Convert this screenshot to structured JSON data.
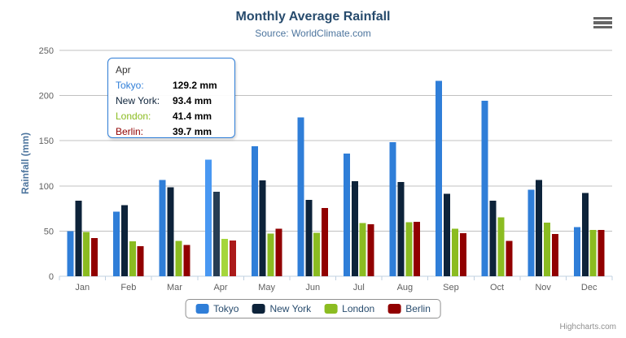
{
  "chart": {
    "title": "Monthly Average Rainfall",
    "subtitle": "Source: WorldClimate.com",
    "y_axis_title": "Rainfall (mm)",
    "credits": "Highcharts.com",
    "menu_icon": "hamburger-menu-icon"
  },
  "chart_data": {
    "type": "bar",
    "title": "Monthly Average Rainfall",
    "subtitle": "Source: WorldClimate.com",
    "xlabel": "",
    "ylabel": "Rainfall (mm)",
    "ylim": [
      0,
      250
    ],
    "y_tick_interval": 50,
    "y_tick_labels": [
      "0",
      "50",
      "100",
      "150",
      "200",
      "250"
    ],
    "grid": true,
    "legend_position": "bottom-center",
    "categories": [
      "Jan",
      "Feb",
      "Mar",
      "Apr",
      "May",
      "Jun",
      "Jul",
      "Aug",
      "Sep",
      "Oct",
      "Nov",
      "Dec"
    ],
    "hovered_category": "Apr",
    "hovered_category_index": 3,
    "series": [
      {
        "name": "Tokyo",
        "color": "#2f7ed8",
        "hover_color": "#4998f2",
        "values": [
          49.9,
          71.5,
          106.4,
          129.2,
          144.0,
          176.0,
          135.6,
          148.5,
          216.4,
          194.1,
          95.6,
          54.4
        ]
      },
      {
        "name": "New York",
        "color": "#0d233a",
        "hover_color": "#273d54",
        "values": [
          83.6,
          78.8,
          98.5,
          93.4,
          106.0,
          84.5,
          105.0,
          104.3,
          91.2,
          83.5,
          106.6,
          92.3
        ]
      },
      {
        "name": "London",
        "color": "#8bbc21",
        "hover_color": "#a5d63b",
        "values": [
          48.9,
          38.8,
          39.3,
          41.4,
          47.0,
          48.3,
          59.0,
          59.6,
          52.4,
          65.2,
          59.3,
          51.2
        ]
      },
      {
        "name": "Berlin",
        "color": "#910000",
        "hover_color": "#ab1a1a",
        "values": [
          42.4,
          33.2,
          34.5,
          39.7,
          52.6,
          75.5,
          57.4,
          60.4,
          47.6,
          39.1,
          46.8,
          51.1
        ]
      }
    ]
  },
  "tooltip": {
    "header": "Apr",
    "rows": [
      {
        "label": "Tokyo:",
        "value": "129.2 mm",
        "color": "#2f7ed8"
      },
      {
        "label": "New York:",
        "value": "93.4 mm",
        "color": "#0d233a"
      },
      {
        "label": "London:",
        "value": "41.4 mm",
        "color": "#8bbc21"
      },
      {
        "label": "Berlin:",
        "value": "39.7 mm",
        "color": "#910000"
      }
    ]
  },
  "legend": {
    "items": [
      {
        "label": "Tokyo",
        "color": "#2f7ed8"
      },
      {
        "label": "New York",
        "color": "#0d233a"
      },
      {
        "label": "London",
        "color": "#8bbc21"
      },
      {
        "label": "Berlin",
        "color": "#910000"
      }
    ]
  },
  "theme": {
    "title_color": "#274b6d",
    "subtitle_color": "#4d759e",
    "axis_label_color": "#606060",
    "gridline_color": "#c0c0c0",
    "axis_line_color": "#c0d0e0",
    "legend_border_color": "#909090",
    "tooltip_border_color": "#2f7ed8",
    "credits_color": "#909090"
  }
}
